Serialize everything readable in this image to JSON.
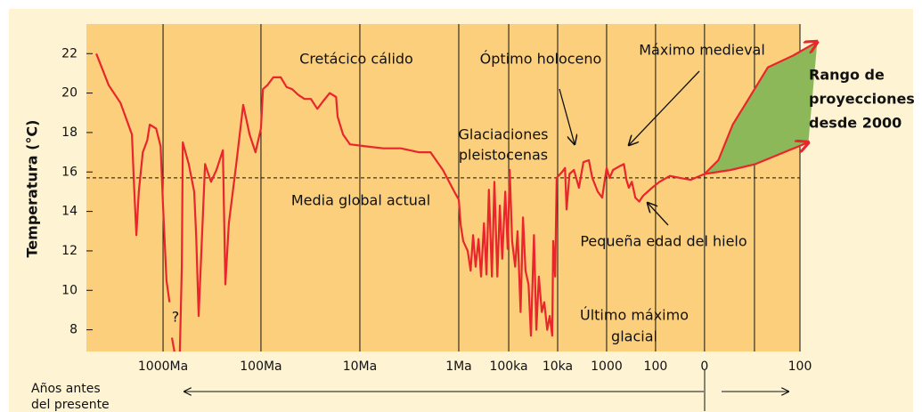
{
  "chart_data": {
    "type": "line",
    "y_label": "Temperatura (°C)",
    "x_label_lines": [
      "Años antes",
      "del presente"
    ],
    "ylim": [
      6.9,
      23.5
    ],
    "yticks": [
      8,
      10,
      12,
      14,
      16,
      18,
      20,
      22
    ],
    "xlim": [
      -1.55,
      12.88
    ],
    "xticks": [
      {
        "value": 0,
        "label": "1000Ma"
      },
      {
        "value": 1.98,
        "label": "100Ma"
      },
      {
        "value": 3.98,
        "label": "10Ma"
      },
      {
        "value": 5.98,
        "label": "1Ma"
      },
      {
        "value": 6.99,
        "label": "100ka"
      },
      {
        "value": 7.98,
        "label": "10ka"
      },
      {
        "value": 8.97,
        "label": "1000"
      },
      {
        "value": 9.96,
        "label": "100"
      },
      {
        "value": 10.95,
        "label": "0"
      },
      {
        "value": 11.96,
        "label": null
      },
      {
        "value": 12.88,
        "label": "100"
      }
    ],
    "reference_line": 15.7,
    "series": [
      {
        "name": null,
        "color": "#e8262b",
        "x": [
          -1.35,
          -1.1,
          -0.86,
          -0.63,
          -0.59,
          -0.54,
          -0.49,
          -0.41,
          -0.32,
          -0.27,
          -0.14,
          -0.05,
          0,
          0.07,
          0.13,
          null,
          0.18,
          0.23,
          null,
          0.34,
          0.38,
          0.4,
          0.52,
          0.63,
          0.67,
          0.72,
          0.85,
          0.97,
          1.08,
          1.21,
          1.26,
          1.33,
          1.42,
          1.48,
          1.62,
          1.75,
          1.87,
          1.98,
          2.02,
          2.11,
          2.23,
          2.38,
          2.5,
          2.61,
          2.74,
          2.86,
          2.99,
          3.12,
          3.24,
          3.37,
          3.5,
          3.53,
          3.64,
          3.78,
          4.09,
          4.45,
          4.81,
          5.17,
          5.41,
          5.66,
          5.89,
          5.98,
          6.02,
          6.07,
          6.16,
          6.22,
          6.27,
          6.32,
          6.38,
          6.43,
          6.49,
          6.54,
          6.59,
          6.65,
          6.7,
          6.76,
          6.81,
          6.86,
          6.92,
          6.97,
          7.01,
          7.06,
          7.12,
          7.17,
          7.23,
          7.28,
          7.33,
          7.39,
          7.44,
          7.5,
          7.55,
          7.6,
          7.66,
          7.71,
          7.77,
          7.82,
          7.87,
          7.89,
          7.93,
          7.96,
          8.07,
          8.13,
          8.16,
          8.22,
          8.31,
          8.41,
          8.5,
          8.61,
          8.68,
          8.79,
          8.88,
          8.94,
          8.97,
          9.03,
          9.1,
          9.24,
          9.32,
          9.37,
          9.42,
          9.48,
          9.55,
          9.63,
          9.71,
          9.89,
          10.04,
          10.25,
          10.45,
          10.67,
          10.95
        ],
        "values": [
          22.0,
          20.4,
          19.5,
          17.9,
          15.5,
          12.8,
          15.0,
          17.0,
          17.6,
          18.4,
          18.2,
          17.3,
          14.3,
          10.5,
          9.4,
          null,
          7.6,
          6.9,
          null,
          6.9,
          11.2,
          17.5,
          16.4,
          15.0,
          12.8,
          8.7,
          16.4,
          15.5,
          16.1,
          17.1,
          10.3,
          13.4,
          15.2,
          16.4,
          19.4,
          17.9,
          17.0,
          18.2,
          20.2,
          20.4,
          20.8,
          20.8,
          20.3,
          20.2,
          19.9,
          19.7,
          19.7,
          19.2,
          19.6,
          20.0,
          19.8,
          18.8,
          17.9,
          17.4,
          17.3,
          17.2,
          17.2,
          17.0,
          17.0,
          16.1,
          15.0,
          14.6,
          13.3,
          12.5,
          12.0,
          11.0,
          12.8,
          11.2,
          12.6,
          10.7,
          13.4,
          10.8,
          15.1,
          10.7,
          15.5,
          10.7,
          14.3,
          11.6,
          15.0,
          12.1,
          16.1,
          12.5,
          11.2,
          13.0,
          8.9,
          13.7,
          11.0,
          10.3,
          7.7,
          12.8,
          8.0,
          10.7,
          8.9,
          9.4,
          8.0,
          8.7,
          7.7,
          12.5,
          10.7,
          15.7,
          16.0,
          16.2,
          14.1,
          15.9,
          16.1,
          15.2,
          16.5,
          16.6,
          15.7,
          15.0,
          14.7,
          15.7,
          16.2,
          15.7,
          16.1,
          16.3,
          16.4,
          15.6,
          15.2,
          15.5,
          14.7,
          14.5,
          14.8,
          15.2,
          15.5,
          15.8,
          15.7,
          15.6,
          15.9
        ]
      },
      {
        "name": null,
        "color": "#e8262b",
        "fill": "#8db85a",
        "fill_to": 2,
        "x": [
          10.95,
          11.23,
          11.52,
          11.84,
          12.23,
          12.74,
          13.23
        ],
        "values": [
          15.9,
          16.6,
          18.4,
          19.7,
          21.3,
          21.9,
          22.6
        ]
      },
      {
        "name": null,
        "color": "#e8262b",
        "x": [
          10.95,
          11.48,
          11.98,
          12.56,
          13.05
        ],
        "values": [
          15.9,
          16.1,
          16.4,
          17.0,
          17.5
        ]
      }
    ],
    "annotations": [
      {
        "lines": [
          "Cretácico cálido"
        ]
      },
      {
        "lines": [
          "Óptimo holoceno"
        ]
      },
      {
        "lines": [
          "Máximo medieval"
        ]
      },
      {
        "lines": [
          "Glaciaciones",
          "pleistocenas"
        ]
      },
      {
        "lines": [
          "Media global actual"
        ]
      },
      {
        "lines": [
          "Pequeña edad del hielo"
        ]
      },
      {
        "lines": [
          "Último máximo",
          "glacial"
        ]
      },
      {
        "lines": [
          "?"
        ]
      },
      {
        "lines": [
          "Rango de",
          "proyecciones",
          "desde 2000"
        ]
      }
    ]
  }
}
